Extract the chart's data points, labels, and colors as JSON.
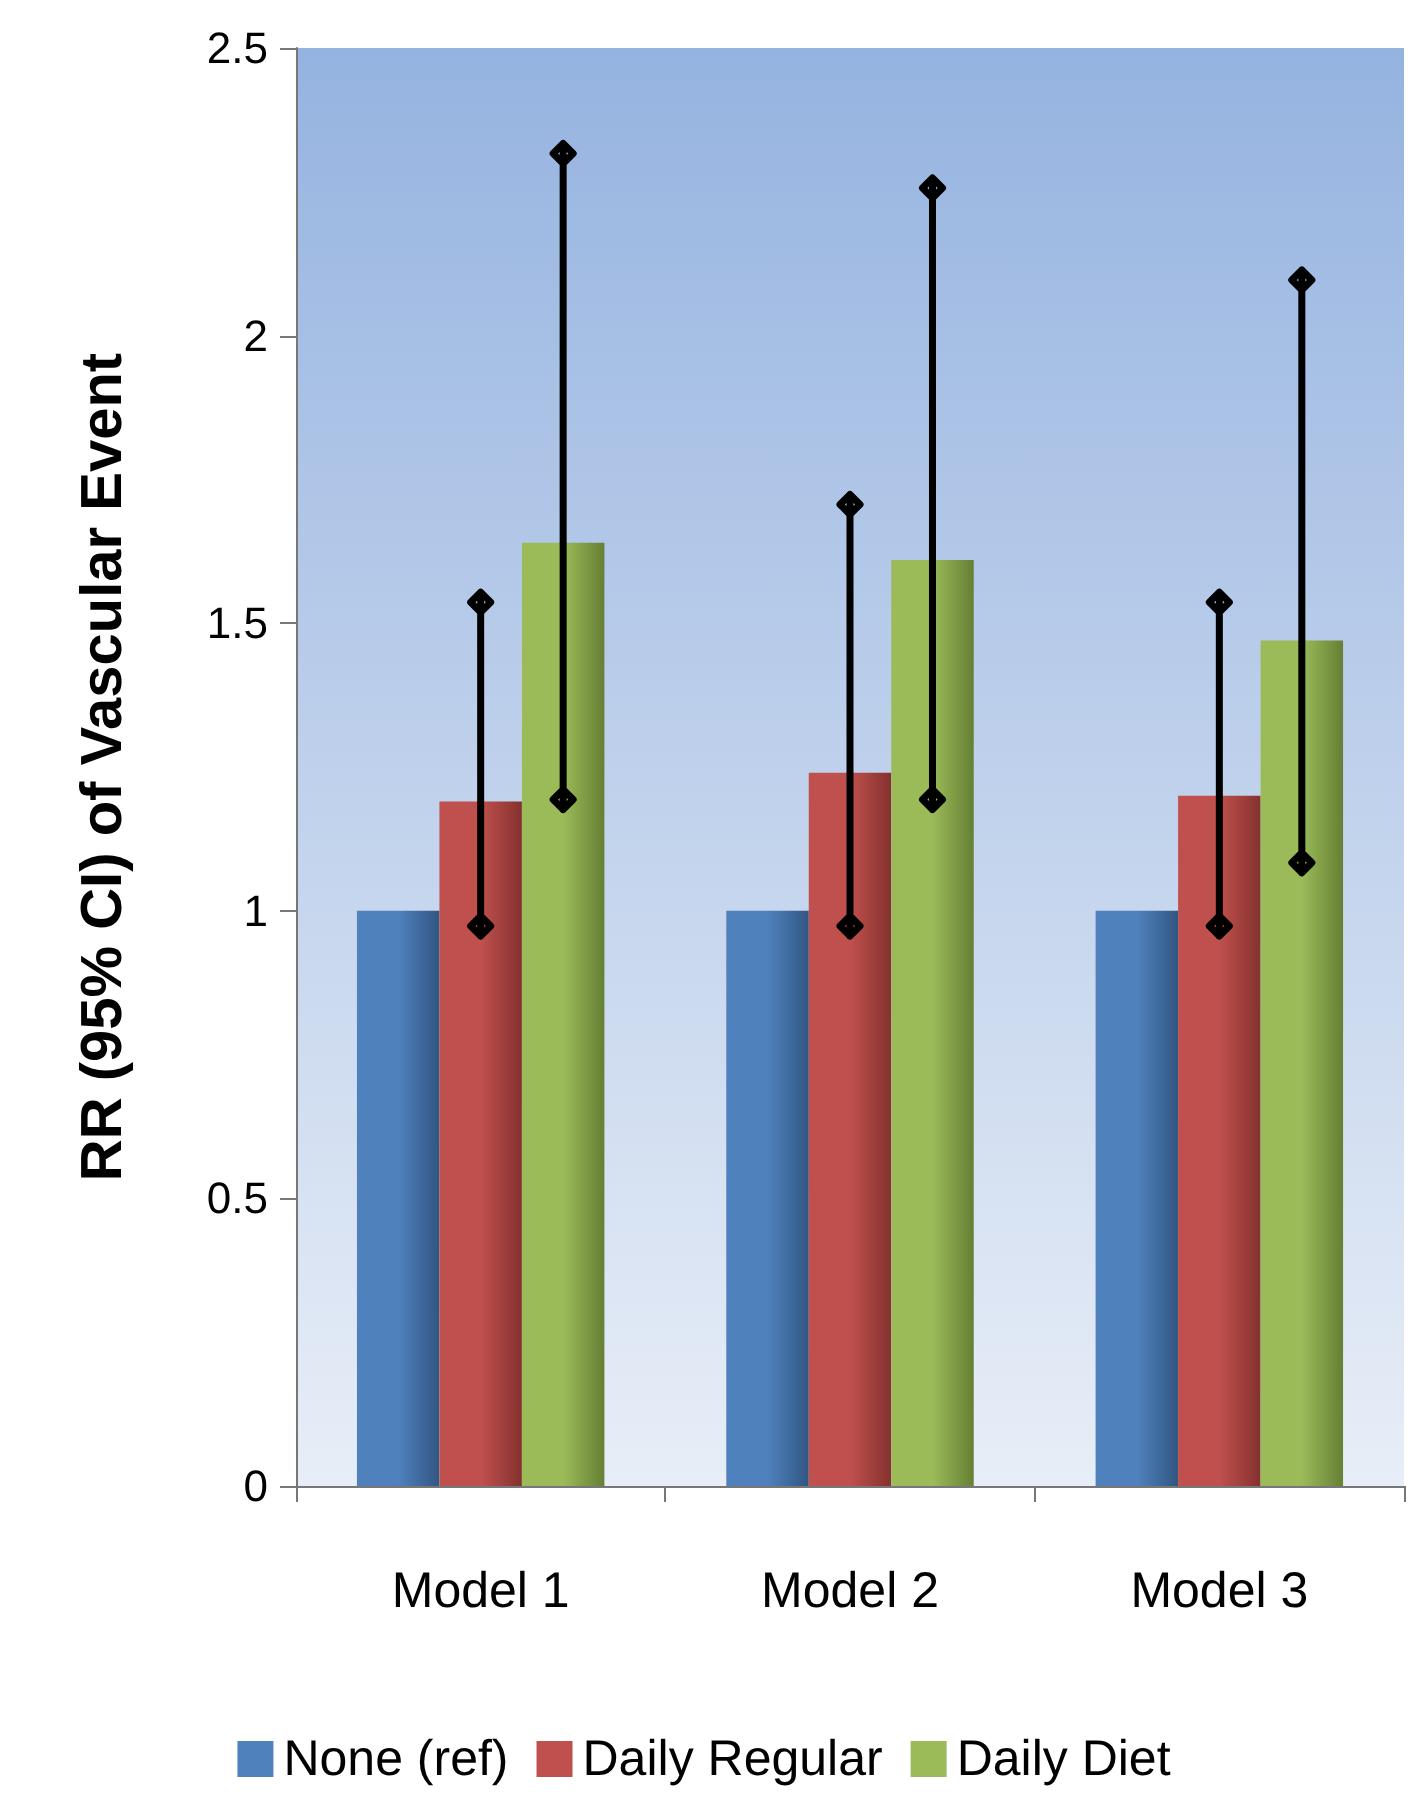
{
  "chart_data": {
    "type": "bar",
    "ylabel": "RR (95% CI) of Vascular Event",
    "categories": [
      "Model 1",
      "Model 2",
      "Model 3"
    ],
    "series": [
      {
        "name": "None (ref)",
        "color": "#4f81bd",
        "values": [
          1,
          1,
          1
        ]
      },
      {
        "name": "Daily Regular",
        "color": "#c0504d",
        "values": [
          1.19,
          1.24,
          1.2
        ],
        "errors": [
          [
            0.95,
            1.56
          ],
          [
            0.95,
            1.73
          ],
          [
            0.95,
            1.56
          ]
        ]
      },
      {
        "name": "Daily Diet",
        "color": "#9bbb59",
        "values": [
          1.64,
          1.61,
          1.47
        ],
        "errors": [
          [
            1.17,
            2.34
          ],
          [
            1.17,
            2.28
          ],
          [
            1.06,
            2.12
          ]
        ]
      }
    ],
    "ylim": [
      0,
      2.5
    ],
    "yticks": [
      0,
      0.5,
      1,
      1.5,
      2,
      2.5
    ],
    "grid": false,
    "legend": "bottom",
    "marker": "diamond"
  }
}
